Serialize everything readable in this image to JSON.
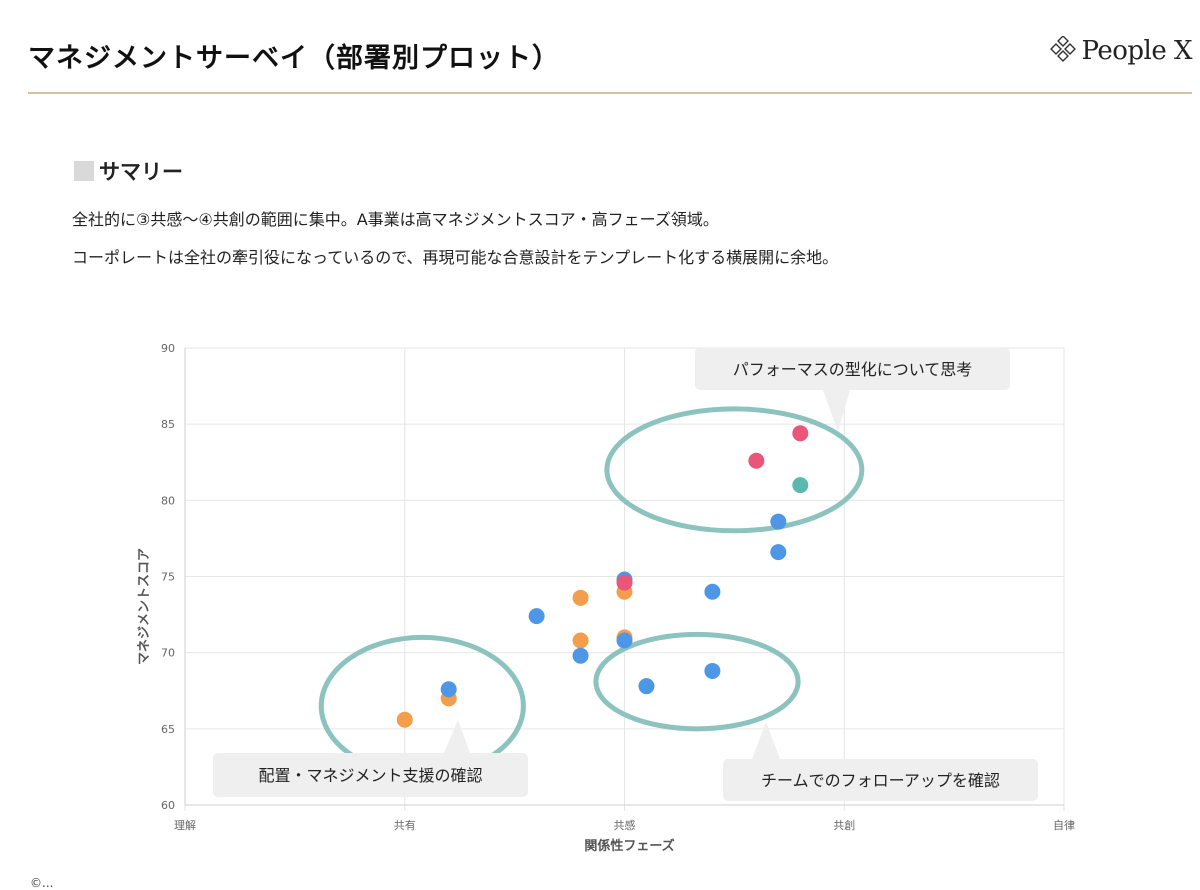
{
  "header": {
    "title": "マネジメントサーベイ（部署別プロット）",
    "brand": "People X",
    "brand_icon": "diamond-logo-icon",
    "rule_color": "#d6c1a0"
  },
  "summary": {
    "heading": "サマリー",
    "lines": [
      "全社的に③共感〜④共創の範囲に集中。A事業は高マネジメントスコア・高フェーズ領域。",
      "コーポレートは全社の牽引役になっているので、再現可能な合意設計をテンプレート化する横展開に余地。"
    ]
  },
  "chart_data": {
    "type": "scatter",
    "xlabel": "関係性フェーズ",
    "ylabel": "マネジメントスコア",
    "x_categories": [
      "理解",
      "共有",
      "共感",
      "共創",
      "自律"
    ],
    "xlim": [
      0,
      4
    ],
    "ylim": [
      60,
      90
    ],
    "yticks": [
      60,
      65,
      70,
      75,
      80,
      85,
      90
    ],
    "grid": true,
    "colors": {
      "blue": "#4d97e6",
      "orange": "#f29e4c",
      "pink": "#e9567a",
      "teal": "#5ab8ad",
      "ellipse": "#8cc3bf"
    },
    "points": [
      {
        "x": 1.0,
        "y": 65.6,
        "color": "orange"
      },
      {
        "x": 1.2,
        "y": 67.0,
        "color": "orange"
      },
      {
        "x": 1.2,
        "y": 67.6,
        "color": "blue"
      },
      {
        "x": 1.6,
        "y": 72.4,
        "color": "blue"
      },
      {
        "x": 1.8,
        "y": 73.6,
        "color": "orange"
      },
      {
        "x": 1.8,
        "y": 70.8,
        "color": "orange"
      },
      {
        "x": 1.8,
        "y": 69.8,
        "color": "blue"
      },
      {
        "x": 2.0,
        "y": 74.0,
        "color": "orange"
      },
      {
        "x": 2.0,
        "y": 74.8,
        "color": "blue"
      },
      {
        "x": 2.0,
        "y": 74.6,
        "color": "pink"
      },
      {
        "x": 2.0,
        "y": 71.0,
        "color": "orange"
      },
      {
        "x": 2.0,
        "y": 70.8,
        "color": "blue"
      },
      {
        "x": 2.1,
        "y": 67.8,
        "color": "blue"
      },
      {
        "x": 2.4,
        "y": 74.0,
        "color": "blue"
      },
      {
        "x": 2.4,
        "y": 68.8,
        "color": "blue"
      },
      {
        "x": 2.6,
        "y": 82.6,
        "color": "pink"
      },
      {
        "x": 2.7,
        "y": 78.6,
        "color": "blue"
      },
      {
        "x": 2.7,
        "y": 76.6,
        "color": "blue"
      },
      {
        "x": 2.8,
        "y": 84.4,
        "color": "pink"
      },
      {
        "x": 2.8,
        "y": 81.0,
        "color": "teal"
      }
    ],
    "annotations": [
      {
        "text": "パフォーマスの型化について思考",
        "ellipse": {
          "cx": 2.5,
          "cy": 82.0,
          "rx": 0.58,
          "ry": 4.0
        }
      },
      {
        "text": "配置・マネジメント支援の確認",
        "ellipse": {
          "cx": 1.08,
          "cy": 66.5,
          "rx": 0.46,
          "ry": 4.5
        }
      },
      {
        "text": "チームでのフォローアップを確認",
        "ellipse": {
          "cx": 2.33,
          "cy": 68.1,
          "rx": 0.46,
          "ry": 3.1
        }
      }
    ]
  },
  "footer": {
    "text": "©..."
  }
}
